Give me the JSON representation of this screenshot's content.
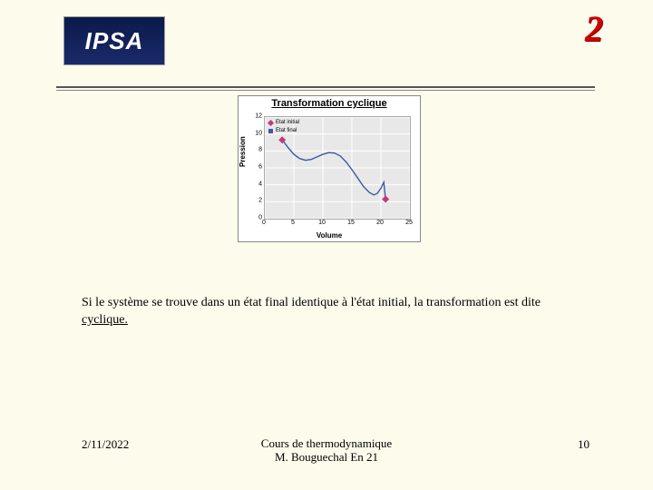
{
  "header": {
    "logo_text": "IPSA",
    "page_number": "2"
  },
  "chart": {
    "type": "line",
    "title": "Transformation cyclique",
    "xlabel": "Volume",
    "ylabel": "Pression",
    "xlim": [
      0,
      25
    ],
    "ylim": [
      0,
      12
    ],
    "xticks": [
      0,
      5,
      10,
      15,
      20,
      25
    ],
    "yticks": [
      0,
      2,
      4,
      6,
      8,
      10,
      12
    ],
    "background_color": "#e8e8e8",
    "grid_color": "#ffffff",
    "axis_color": "#aaaaaa",
    "curve_color": "#3b5ba5",
    "curve_width": 1.4,
    "curve_points": [
      [
        3,
        9.3
      ],
      [
        4,
        8.4
      ],
      [
        5,
        7.6
      ],
      [
        6,
        7.1
      ],
      [
        7,
        6.9
      ],
      [
        8,
        7.0
      ],
      [
        9,
        7.3
      ],
      [
        10,
        7.6
      ],
      [
        11,
        7.8
      ],
      [
        12,
        7.75
      ],
      [
        13,
        7.4
      ],
      [
        14,
        6.7
      ],
      [
        15,
        5.8
      ],
      [
        16,
        4.8
      ],
      [
        17,
        3.8
      ],
      [
        18,
        3.1
      ],
      [
        18.8,
        2.8
      ],
      [
        19.4,
        3.0
      ],
      [
        20,
        3.6
      ],
      [
        20.5,
        4.3
      ],
      [
        20.8,
        2.3
      ]
    ],
    "legend": [
      {
        "label": "Etat initial",
        "color": "#c23a7a",
        "marker": "diamond"
      },
      {
        "label": "Etat final",
        "color": "#3b5ba5",
        "marker": "square"
      }
    ],
    "markers": [
      {
        "xy": [
          3,
          9.3
        ],
        "color": "#c23a7a",
        "shape": "diamond",
        "size": 4
      },
      {
        "xy": [
          20.8,
          2.3
        ],
        "color": "#c23a7a",
        "shape": "diamond",
        "size": 4
      }
    ]
  },
  "body": {
    "text_pre": "Si le système se trouve dans un état final identique à l'état initial, la transformation est dite ",
    "keyword": "cyclique."
  },
  "footer": {
    "date": "2/11/2022",
    "center_line1": "Cours de thermodynamique",
    "center_line2": "M. Bouguechal  En 21",
    "slide_number": "10"
  }
}
